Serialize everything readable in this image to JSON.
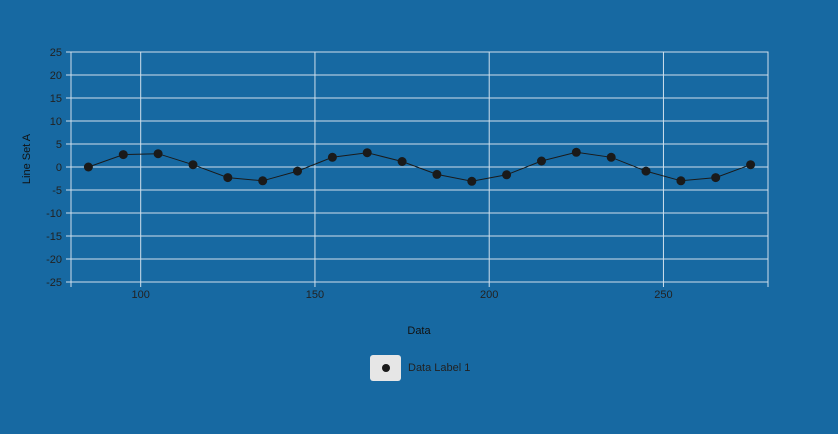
{
  "chart_data": {
    "type": "line",
    "xlabel": "Data",
    "ylabel": "Line Set A",
    "xlim": [
      80,
      280
    ],
    "ylim": [
      -25,
      25
    ],
    "x_ticks": [
      100,
      150,
      200,
      250
    ],
    "y_ticks": [
      25,
      20,
      15,
      10,
      5,
      0,
      -5,
      -10,
      -15,
      -20,
      -25
    ],
    "grid": true,
    "legend_position": "bottom-center",
    "colors": {
      "background": "#1769a2",
      "grid": "#d0e0ec",
      "line": "#1a1a1a",
      "marker": "#1a1a1a",
      "legend_swatch": "#e6e6e6"
    },
    "series": [
      {
        "name": "Data Label 1",
        "x": [
          85,
          95,
          105,
          115,
          125,
          135,
          145,
          155,
          165,
          175,
          185,
          195,
          205,
          215,
          225,
          235,
          245,
          255,
          265,
          275
        ],
        "values": [
          0,
          2.7,
          2.9,
          0.5,
          -2.3,
          -3.0,
          -0.9,
          2.1,
          3.1,
          1.2,
          -1.6,
          -3.1,
          -1.7,
          1.3,
          3.2,
          2.1,
          -0.9,
          -3.0,
          -2.3,
          0.5
        ]
      }
    ]
  },
  "legend": {
    "label": "Data Label 1"
  }
}
